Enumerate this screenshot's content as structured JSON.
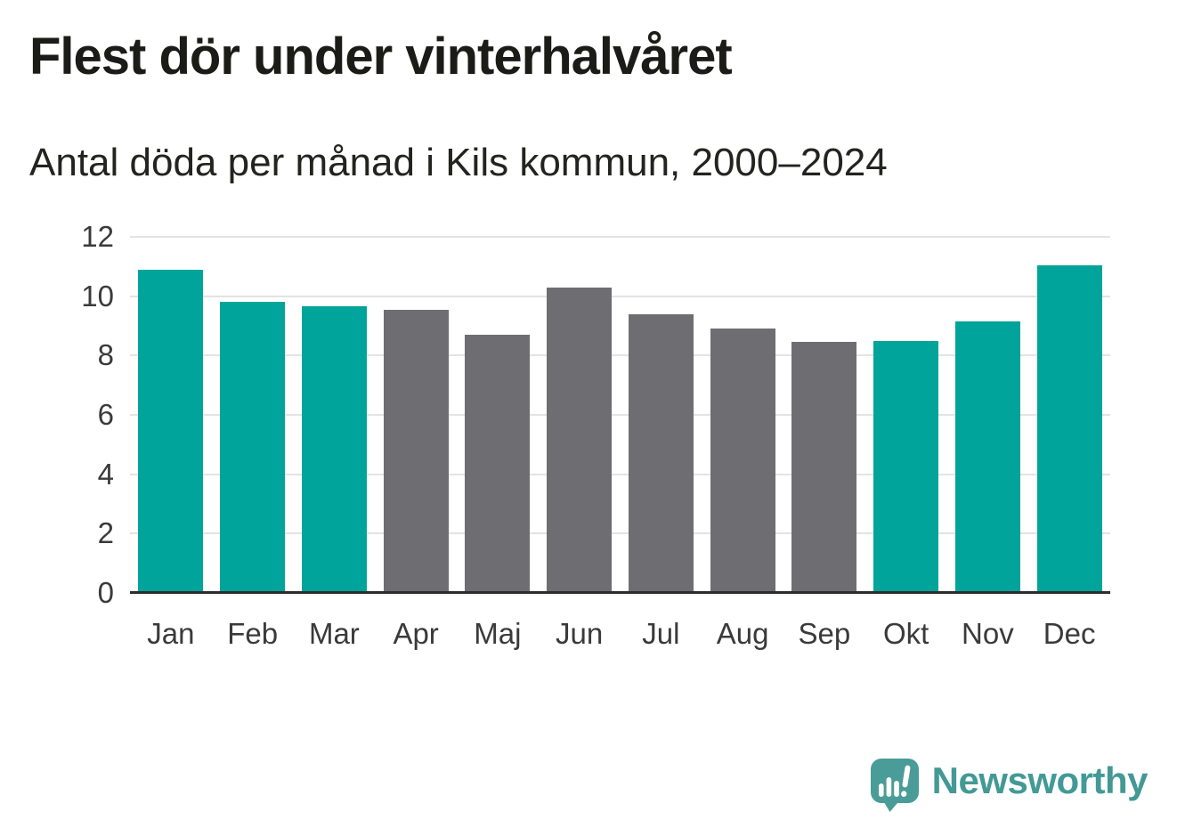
{
  "header": {
    "title": "Flest dör under vinterhalvåret",
    "subtitle": "Antal döda per månad i Kils kommun, 2000–2024"
  },
  "chart_data": {
    "type": "bar",
    "title": "Flest dör under vinterhalvåret",
    "subtitle": "Antal döda per månad i Kils kommun, 2000–2024",
    "categories": [
      "Jan",
      "Feb",
      "Mar",
      "Apr",
      "Maj",
      "Jun",
      "Jul",
      "Aug",
      "Sep",
      "Okt",
      "Nov",
      "Dec"
    ],
    "values": [
      10.9,
      9.8,
      9.65,
      9.55,
      8.7,
      10.3,
      9.4,
      8.9,
      8.45,
      8.5,
      9.15,
      11.05
    ],
    "bar_seasons": [
      "winter",
      "winter",
      "winter",
      "summer",
      "summer",
      "summer",
      "summer",
      "summer",
      "summer",
      "winter",
      "winter",
      "winter"
    ],
    "colors": {
      "winter": "#00a49a",
      "summer": "#6e6d72"
    },
    "ylim": [
      0,
      12
    ],
    "yticks": [
      0,
      2,
      4,
      6,
      8,
      10,
      12
    ],
    "xlabel": "",
    "ylabel": "",
    "grid": true,
    "legend_position": "none"
  },
  "footer": {
    "brand": "Newsworthy",
    "logo_icon": "newsworthy-speech-bubble-bar-chart-icon",
    "brand_color": "#429995",
    "logo_bubble_color": "#4a9c98"
  }
}
